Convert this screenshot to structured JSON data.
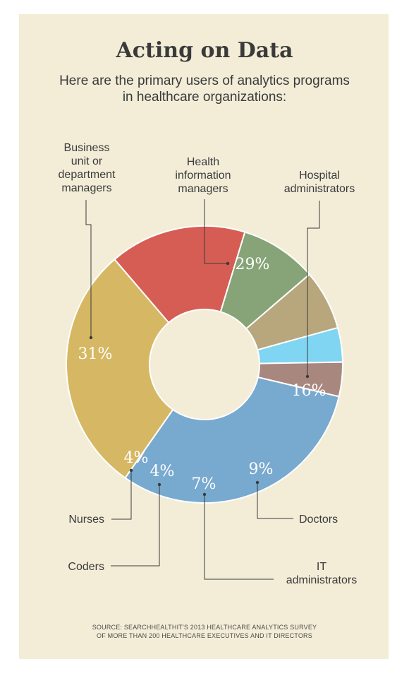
{
  "header": {
    "title": "Acting on Data",
    "subtitle_lines": [
      "Here are the primary users of analytics programs",
      "in healthcare organizations:"
    ]
  },
  "source_lines": [
    "SOURCE: SEARCHHEALTHIT'S 2013 HEALTHCARE ANALYTICS SURVEY",
    "OF MORE THAN 200 HEALTHCARE EXECUTIVES AND IT DIRECTORS"
  ],
  "chart_data": {
    "type": "pie",
    "donut": true,
    "categories": [
      "Health information managers",
      "Hospital administrators",
      "Doctors",
      "IT administrators",
      "Coders",
      "Nurses",
      "Business unit or department managers"
    ],
    "values": [
      29,
      16,
      9,
      7,
      4,
      4,
      31
    ],
    "value_labels": [
      "29%",
      "16%",
      "9%",
      "7%",
      "4%",
      "4%",
      "31%"
    ],
    "label_lines": [
      [
        "Health",
        "information",
        "managers"
      ],
      [
        "Hospital",
        "administrators"
      ],
      [
        "Doctors"
      ],
      [
        "IT",
        "administrators"
      ],
      [
        "Coders"
      ],
      [
        "Nurses"
      ],
      [
        "Business",
        "unit or",
        "department",
        "managers"
      ]
    ],
    "colors": [
      "#d6b864",
      "#d65d54",
      "#86a477",
      "#b8a67d",
      "#7fd5f2",
      "#a8877f",
      "#78a9cf"
    ],
    "unit": "%"
  }
}
